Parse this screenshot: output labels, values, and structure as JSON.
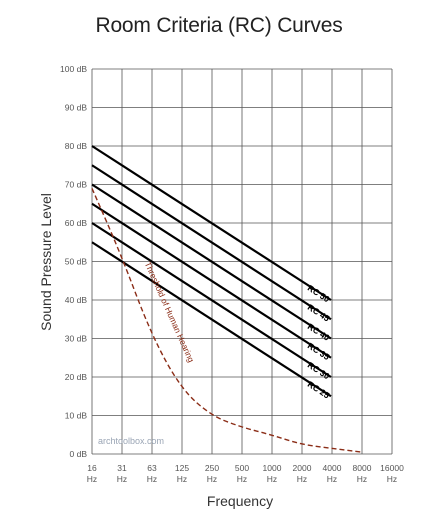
{
  "chart_data": {
    "type": "line",
    "title": "Room Criteria (RC) Curves",
    "xlabel": "Frequency",
    "ylabel": "Sound Pressure Level",
    "x_ticks": [
      {
        "value": "16",
        "unit": "Hz"
      },
      {
        "value": "31",
        "unit": "Hz"
      },
      {
        "value": "63",
        "unit": "Hz"
      },
      {
        "value": "125",
        "unit": "Hz"
      },
      {
        "value": "250",
        "unit": "Hz"
      },
      {
        "value": "500",
        "unit": "Hz"
      },
      {
        "value": "1000",
        "unit": "Hz"
      },
      {
        "value": "2000",
        "unit": "Hz"
      },
      {
        "value": "4000",
        "unit": "Hz"
      },
      {
        "value": "8000",
        "unit": "Hz"
      },
      {
        "value": "16000",
        "unit": "Hz"
      }
    ],
    "y_ticks": [
      "0 dB",
      "10 dB",
      "20 dB",
      "30 dB",
      "40 dB",
      "50 dB",
      "60 dB",
      "70 dB",
      "80 dB",
      "90 dB",
      "100 dB"
    ],
    "ylim": [
      0,
      100
    ],
    "grid": true,
    "series": [
      {
        "name": "RC 50",
        "x": [
          16,
          4000
        ],
        "y": [
          80,
          40
        ],
        "color": "#000000",
        "style": "solid"
      },
      {
        "name": "RC 45",
        "x": [
          16,
          4000
        ],
        "y": [
          75,
          35
        ],
        "color": "#000000",
        "style": "solid"
      },
      {
        "name": "RC 40",
        "x": [
          16,
          4000
        ],
        "y": [
          70,
          30
        ],
        "color": "#000000",
        "style": "solid"
      },
      {
        "name": "RC 35",
        "x": [
          16,
          4000
        ],
        "y": [
          65,
          25
        ],
        "color": "#000000",
        "style": "solid"
      },
      {
        "name": "RC 30",
        "x": [
          16,
          4000
        ],
        "y": [
          60,
          20
        ],
        "color": "#000000",
        "style": "solid"
      },
      {
        "name": "RC 25",
        "x": [
          16,
          4000
        ],
        "y": [
          55,
          15
        ],
        "color": "#000000",
        "style": "solid"
      },
      {
        "name": "Threshold of Human Hearing",
        "x": [
          16,
          31,
          63,
          125,
          250,
          500,
          1000,
          2000,
          4000,
          8000
        ],
        "y": [
          69,
          52,
          31,
          17,
          10,
          7,
          5,
          2.5,
          1.5,
          0.5
        ],
        "color": "#8b2d17",
        "style": "dashed"
      }
    ]
  },
  "watermark": "archtoolbox.com"
}
